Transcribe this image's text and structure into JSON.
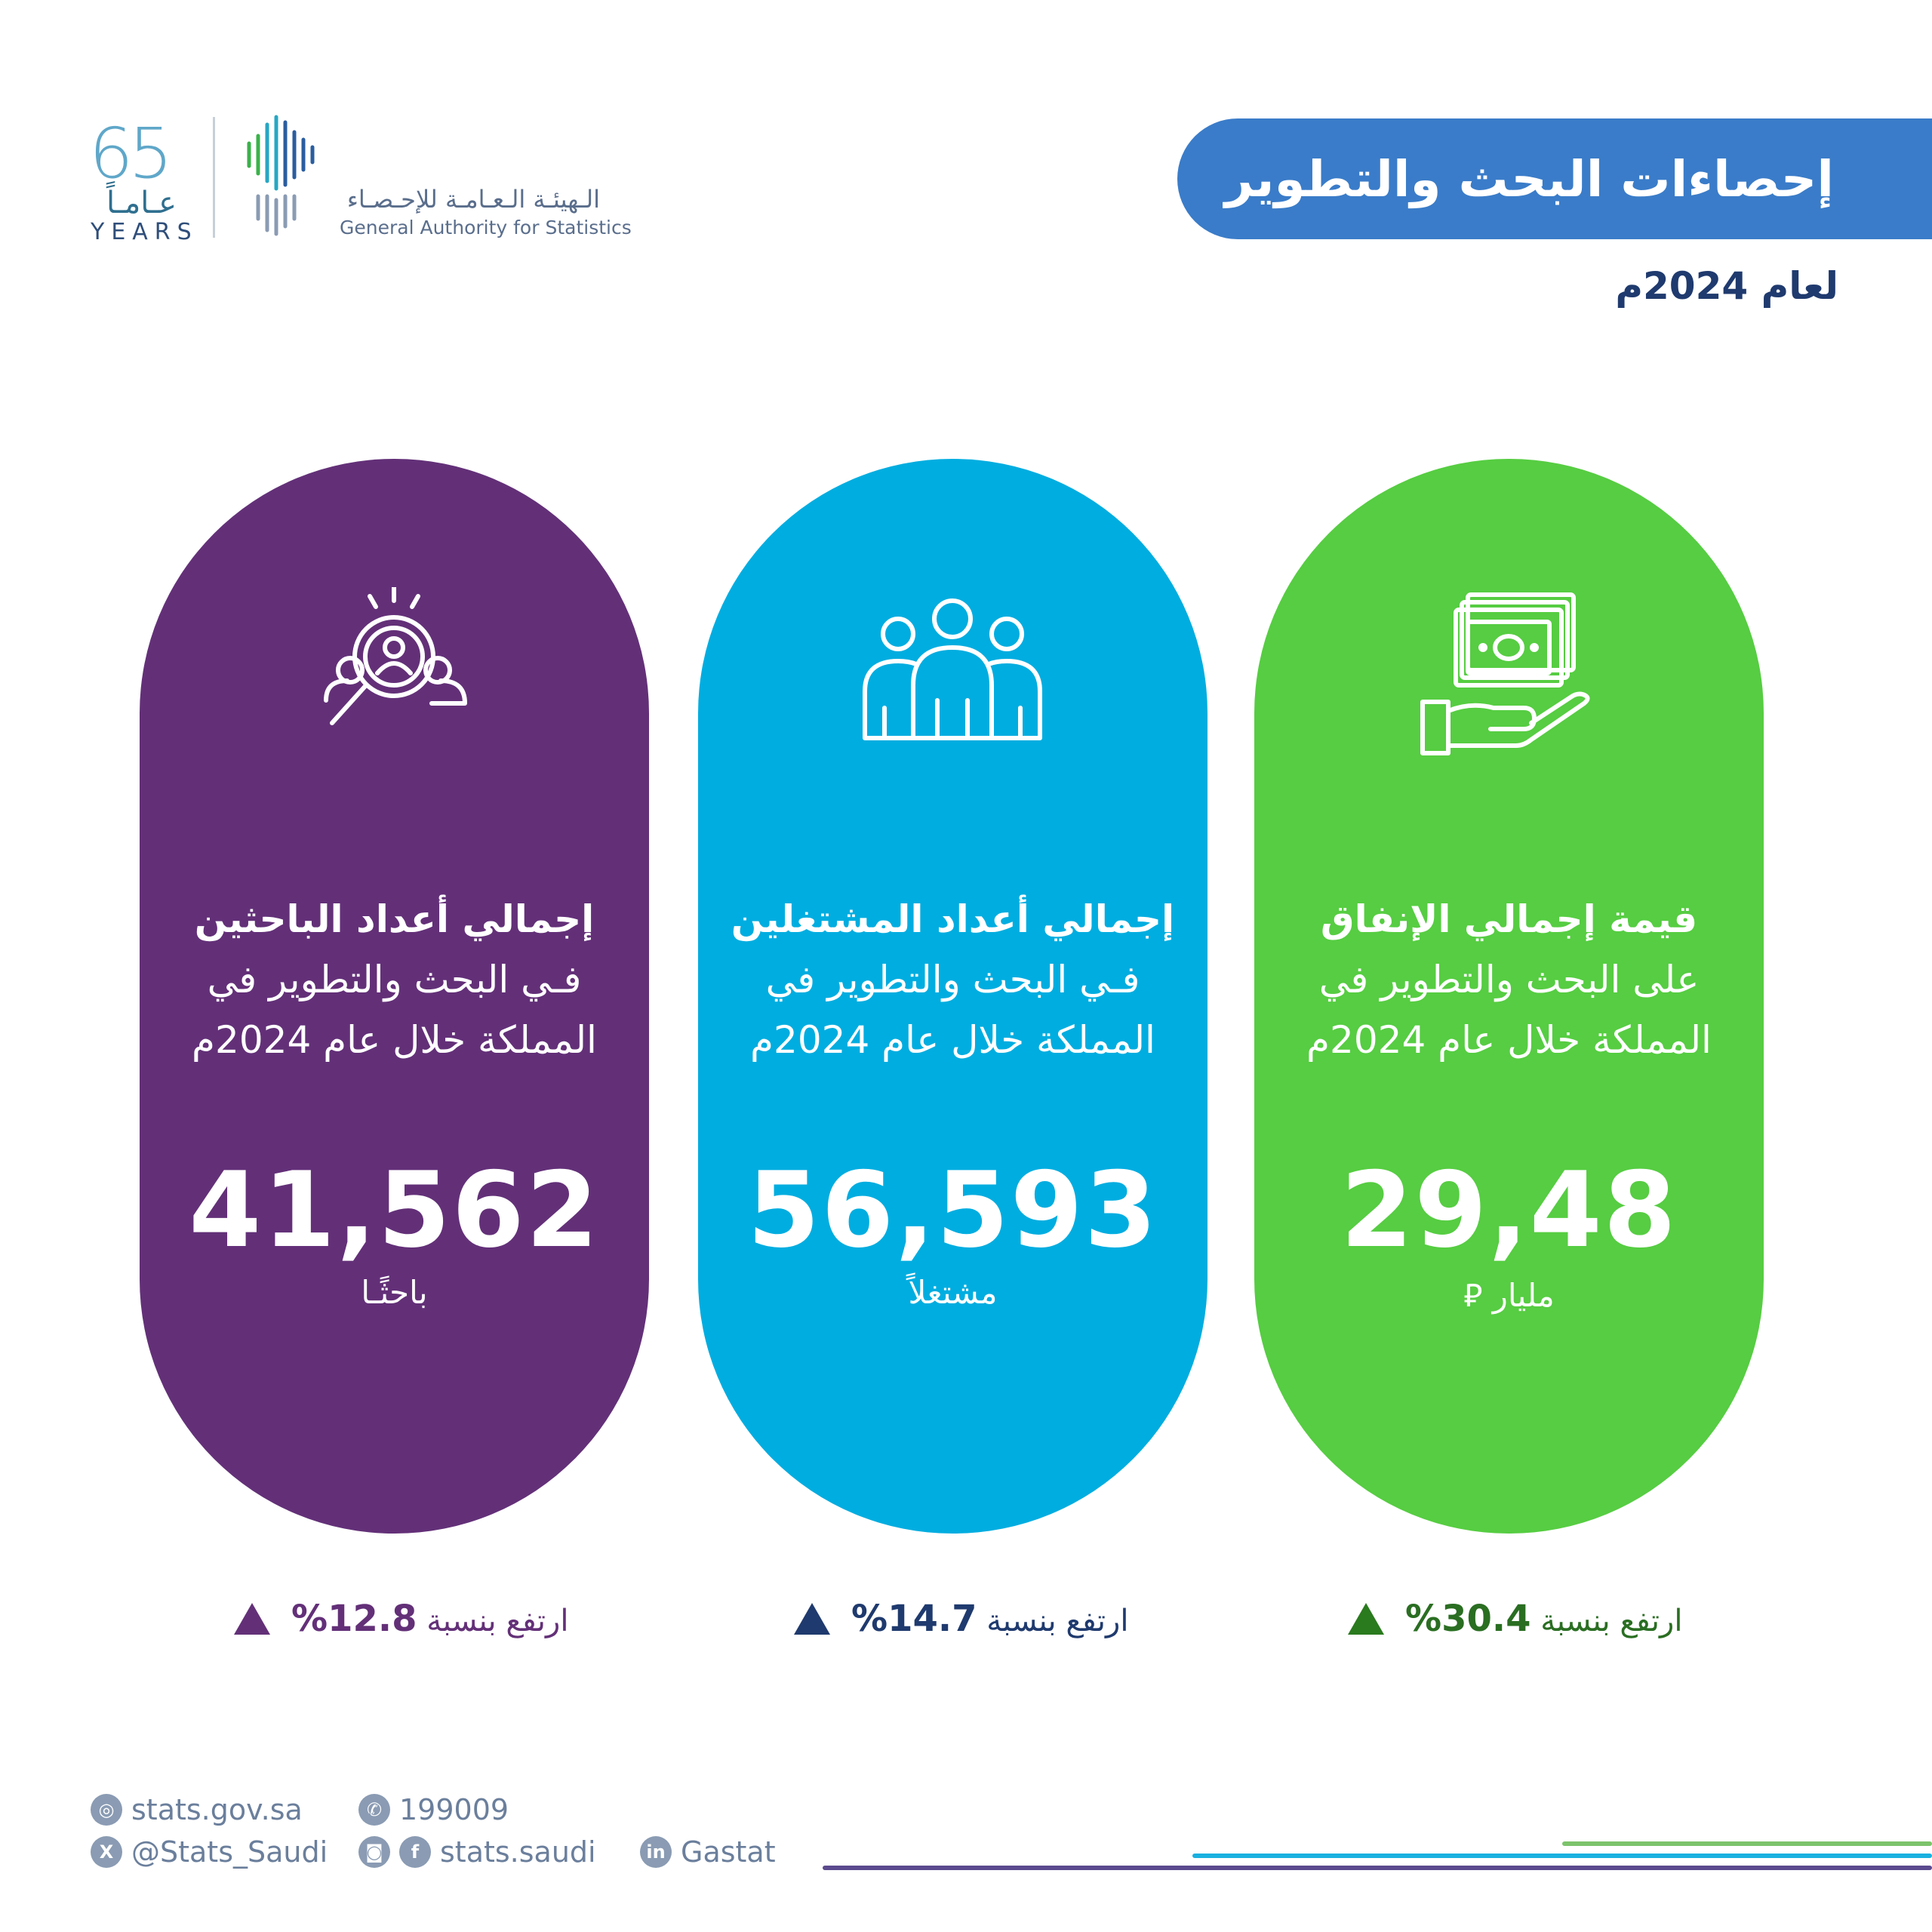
{
  "header": {
    "title": "إحصاءات البحث والتطوير",
    "subtitle": "لعام 2024م"
  },
  "logos": {
    "anniversary_number": "65",
    "anniversary_ar": "عـامـاً",
    "anniversary_en": "YEARS",
    "authority_ar": "الـهيئـة الـعـامـة للإحـصـاء",
    "authority_en": "General Authority for Statistics"
  },
  "cards": [
    {
      "icon": "researcher-search-icon",
      "color": "#633078",
      "heading_bold": "إجمالي أعداد الباحثين",
      "heading_line2": "فـي البحث والتطوير في",
      "heading_line3": "المملكة خلال عام 2024م",
      "value": "41,562",
      "unit": "باحثًـا",
      "growth_label": "ارتفع بنسبة",
      "growth_value": "12.8%"
    },
    {
      "icon": "employees-group-icon",
      "color": "#00ade0",
      "heading_bold": "إجمالي أعداد المشتغلين",
      "heading_line2": "فـي البحث والتطوير في",
      "heading_line3": "المملكة خلال عام 2024م",
      "value": "56,593",
      "unit": "مشتغلاً",
      "growth_label": "ارتفع بنسبة",
      "growth_value": "14.7%"
    },
    {
      "icon": "money-hand-icon",
      "color": "#56cd42",
      "heading_bold": "قيمة إجمالي الإنفاق",
      "heading_line2": "على البحث والتطوير في",
      "heading_line3": "المملكة خلال عام 2024م",
      "value": "29,48",
      "unit": "مليار ⃁",
      "growth_label": "ارتفع بنسبة",
      "growth_value": "30.4%"
    }
  ],
  "footer": {
    "website": "stats.gov.sa",
    "phone": "199009",
    "x_handle": "@Stats_Saudi",
    "social_handle": "stats.saudi",
    "linkedin": "Gastat"
  }
}
